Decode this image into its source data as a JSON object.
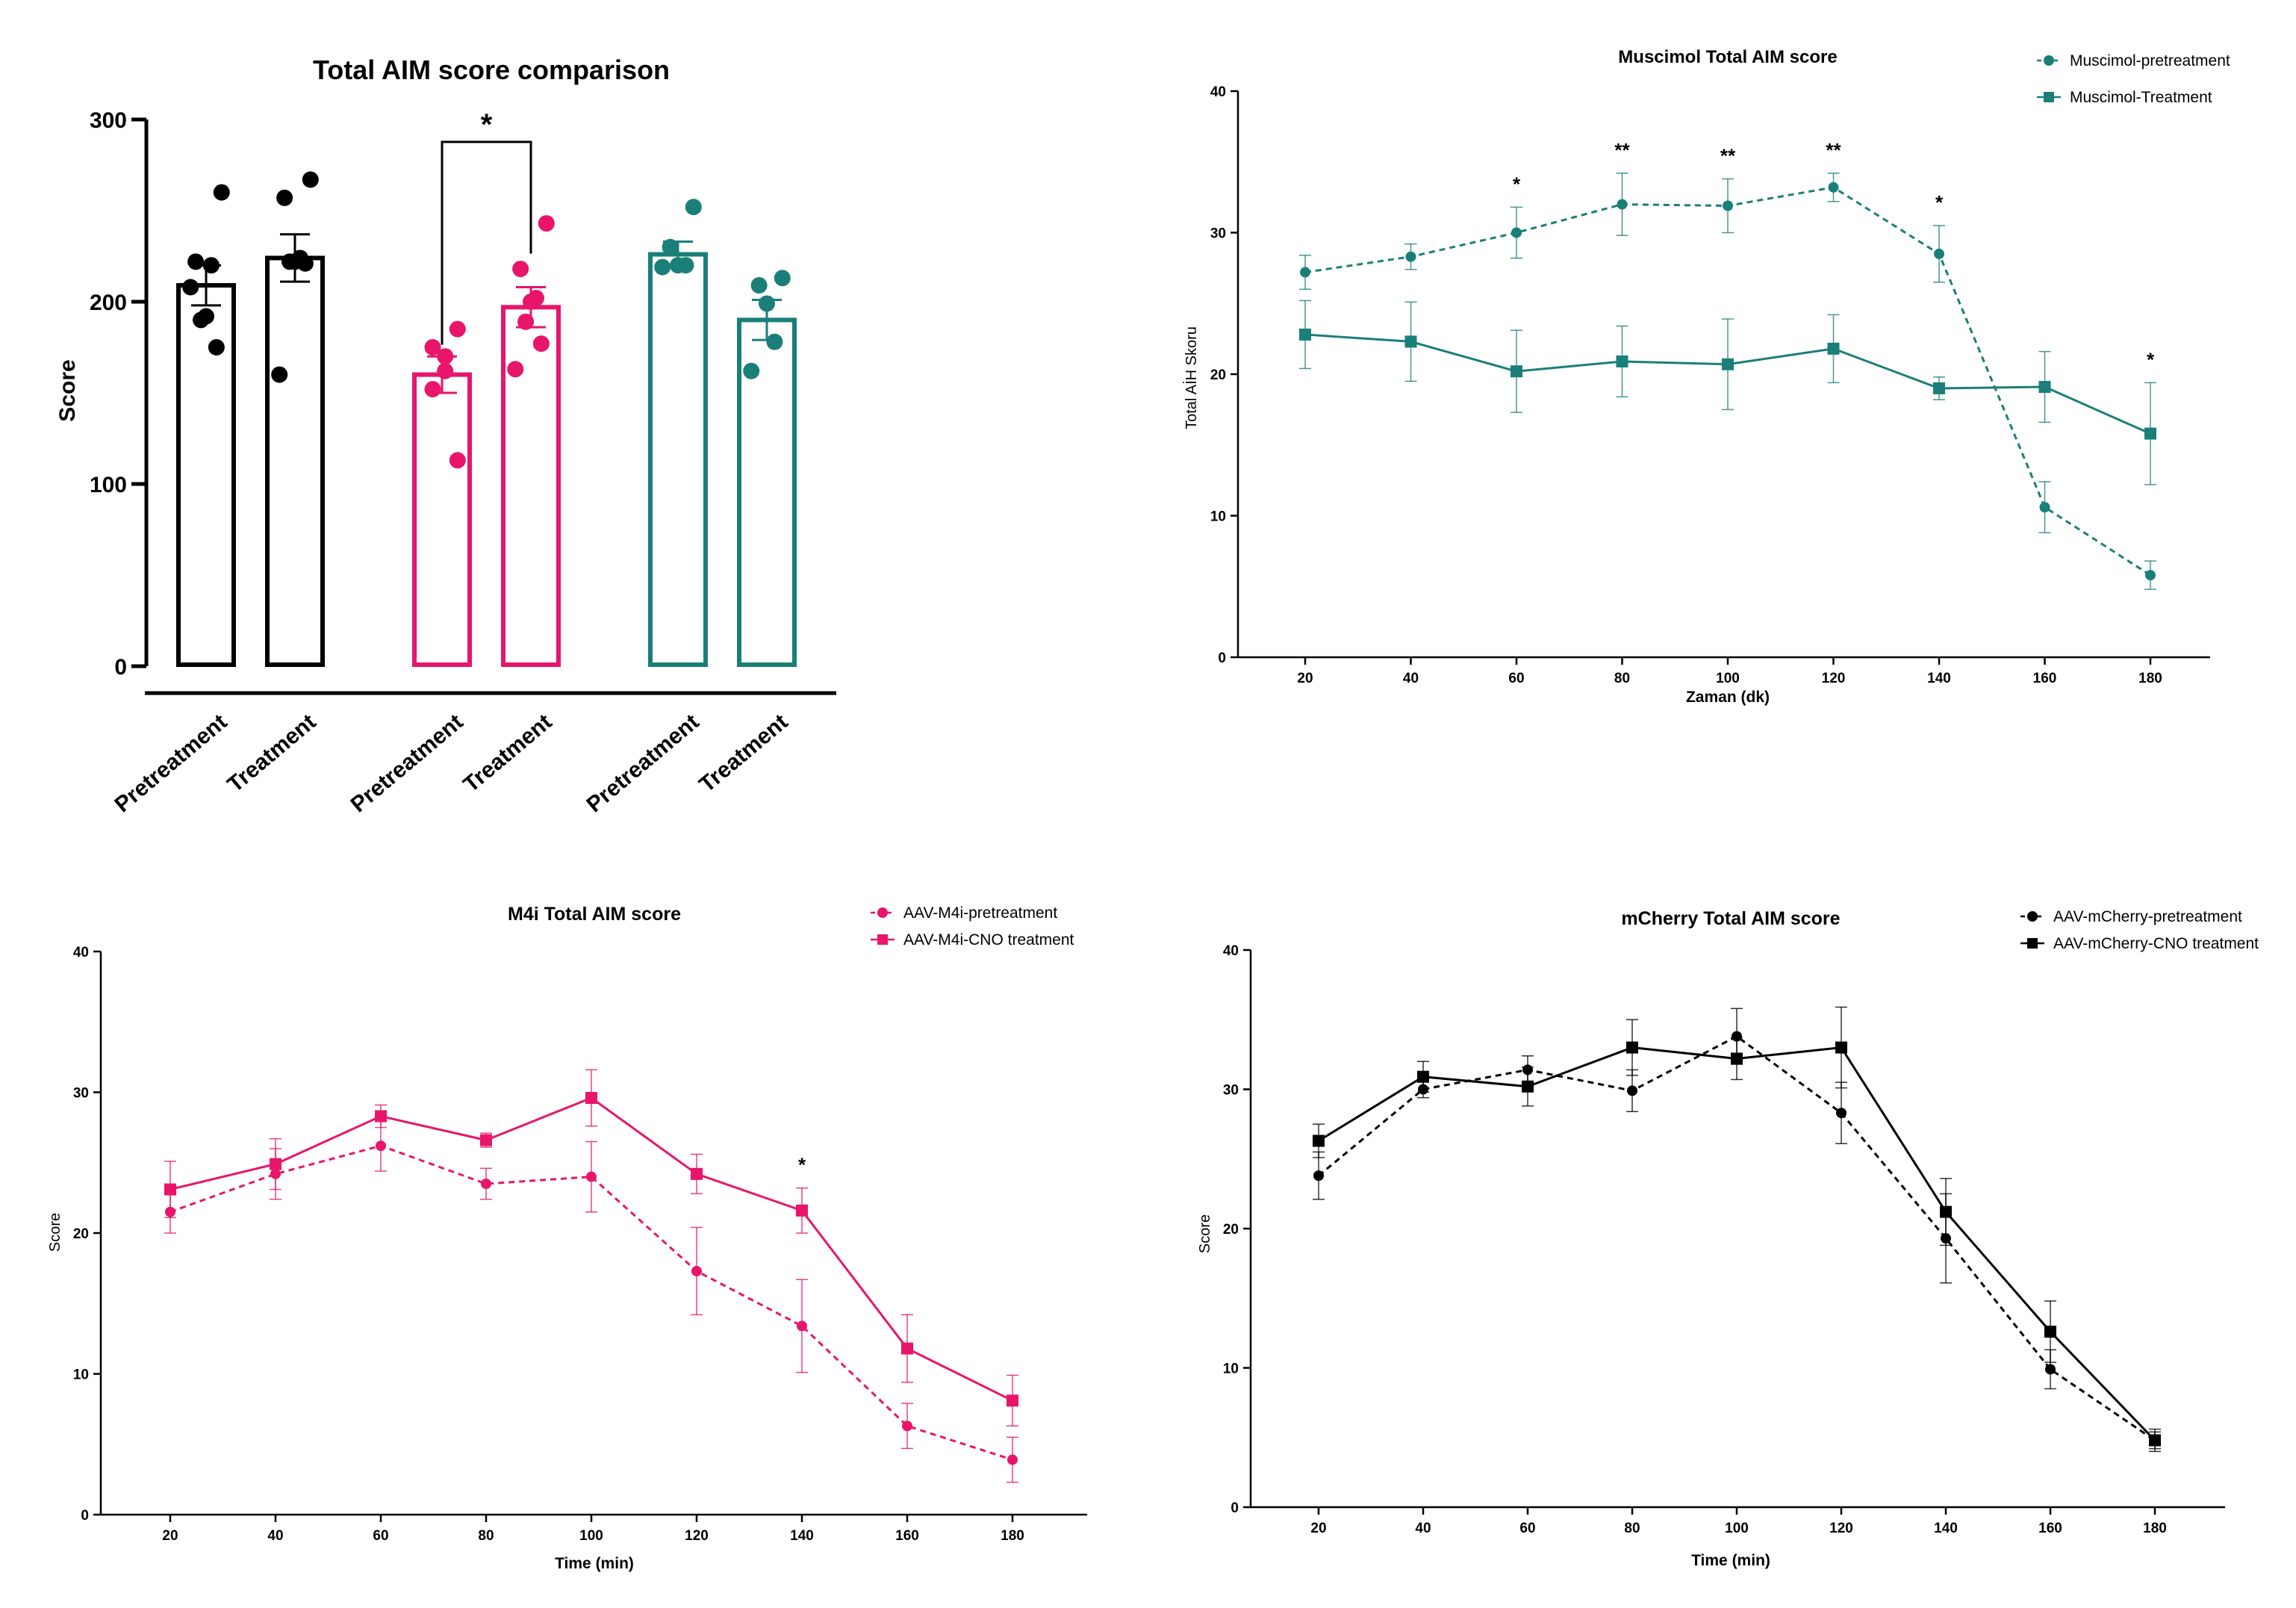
{
  "colors": {
    "black": "#000000",
    "pink": "#e8156b",
    "teal": "#1a7f78"
  },
  "chart_data": [
    {
      "type": "bar",
      "title": "Total AIM score comparison",
      "ylabel": "Score",
      "xlabel": "",
      "ylim": [
        0,
        300
      ],
      "yticks": [
        0,
        100,
        200,
        300
      ],
      "categories": [
        "Pretreatment",
        "Treatment",
        "Pretreatment",
        "Treatment",
        "Pretreatment",
        "Treatment"
      ],
      "colors": [
        "#000000",
        "#000000",
        "#e8156b",
        "#e8156b",
        "#1a7f78",
        "#1a7f78"
      ],
      "values": [
        209,
        224,
        160,
        197,
        226,
        190
      ],
      "sem": [
        11,
        13,
        10,
        11,
        7,
        11
      ],
      "points": [
        [
          260,
          222,
          220,
          192,
          190,
          175,
          208
        ],
        [
          267,
          257,
          224,
          222,
          222,
          221,
          160
        ],
        [
          185,
          175,
          170,
          162,
          152,
          113
        ],
        [
          243,
          218,
          202,
          200,
          189,
          177,
          163
        ],
        [
          252,
          230,
          220,
          220,
          219
        ],
        [
          213,
          209,
          199,
          178,
          162
        ]
      ],
      "significance": [
        {
          "groups": [
            2,
            3
          ],
          "label": "*"
        }
      ]
    },
    {
      "type": "line",
      "title": "Muscimol Total AIM score",
      "xlabel": "Zaman (dk)",
      "ylabel": "Total AİH Skoru",
      "ylim": [
        0,
        40
      ],
      "yticks": [
        0,
        10,
        20,
        30,
        40
      ],
      "x": [
        20,
        40,
        60,
        80,
        100,
        120,
        140,
        160,
        180
      ],
      "color": "#1a7f78",
      "legend": "top-right",
      "series": [
        {
          "name": "Muscimol-pretreatment",
          "marker": "circle",
          "dashed": true,
          "values": [
            27.2,
            28.3,
            30.0,
            32.0,
            31.9,
            33.2,
            28.5,
            10.6,
            5.8
          ],
          "error": [
            1.2,
            0.9,
            1.8,
            2.2,
            1.9,
            1.0,
            2.0,
            1.8,
            1.0
          ]
        },
        {
          "name": "Muscimol-Treatment",
          "marker": "square",
          "dashed": false,
          "values": [
            22.8,
            22.3,
            20.2,
            20.9,
            20.7,
            21.8,
            19.0,
            19.1,
            15.8
          ],
          "error": [
            2.4,
            2.8,
            2.9,
            2.5,
            3.2,
            2.4,
            0.8,
            2.5,
            3.6
          ]
        }
      ],
      "annotations": [
        {
          "x": 60,
          "label": "*"
        },
        {
          "x": 80,
          "label": "**"
        },
        {
          "x": 100,
          "label": "**"
        },
        {
          "x": 120,
          "label": "**"
        },
        {
          "x": 140,
          "label": "*"
        },
        {
          "x": 180,
          "label": "*"
        }
      ]
    },
    {
      "type": "line",
      "title": "M4i Total AIM score",
      "xlabel": "Time (min)",
      "ylabel": "Score",
      "ylim": [
        0,
        40
      ],
      "yticks": [
        0,
        10,
        20,
        30,
        40
      ],
      "x": [
        20,
        40,
        60,
        80,
        100,
        120,
        140,
        160,
        180
      ],
      "color": "#e8156b",
      "legend": "top-right",
      "series": [
        {
          "name": "AAV-M4i-pretreatment",
          "marker": "circle",
          "dashed": true,
          "values": [
            21.5,
            24.2,
            26.2,
            23.5,
            24.0,
            17.3,
            13.4,
            6.3,
            3.9
          ],
          "error": [
            1.5,
            1.8,
            1.8,
            1.1,
            2.5,
            3.1,
            3.3,
            1.6,
            1.6
          ]
        },
        {
          "name": "AAV-M4i-CNO treatment",
          "marker": "square",
          "dashed": false,
          "values": [
            23.1,
            24.9,
            28.3,
            26.6,
            29.6,
            24.2,
            21.6,
            11.8,
            8.1
          ],
          "error": [
            2.0,
            1.8,
            0.8,
            0.5,
            2.0,
            1.4,
            1.6,
            2.4,
            1.8
          ]
        }
      ],
      "annotations": [
        {
          "x": 140,
          "label": "*"
        }
      ]
    },
    {
      "type": "line",
      "title": "mCherry Total AIM score",
      "xlabel": "Time (min)",
      "ylabel": "Score",
      "ylim": [
        0,
        40
      ],
      "yticks": [
        0,
        10,
        20,
        30,
        40
      ],
      "x": [
        20,
        40,
        60,
        80,
        100,
        120,
        140,
        160,
        180
      ],
      "color": "#000000",
      "legend": "top-right",
      "series": [
        {
          "name": "AAV-mCherry-pretreatment",
          "marker": "circle",
          "dashed": true,
          "values": [
            23.8,
            30.0,
            31.4,
            29.9,
            33.8,
            28.3,
            19.3,
            9.9,
            4.8
          ],
          "error": [
            1.7,
            0.6,
            1.0,
            1.5,
            2.0,
            2.2,
            3.2,
            1.4,
            0.6
          ]
        },
        {
          "name": "AAV-mCherry-CNO treatment",
          "marker": "square",
          "dashed": false,
          "values": [
            26.3,
            30.9,
            30.2,
            33.0,
            32.2,
            33.0,
            21.2,
            12.6,
            4.8
          ],
          "error": [
            1.2,
            1.1,
            1.4,
            2.0,
            1.5,
            2.9,
            2.4,
            2.2,
            0.8
          ]
        }
      ],
      "annotations": []
    }
  ]
}
